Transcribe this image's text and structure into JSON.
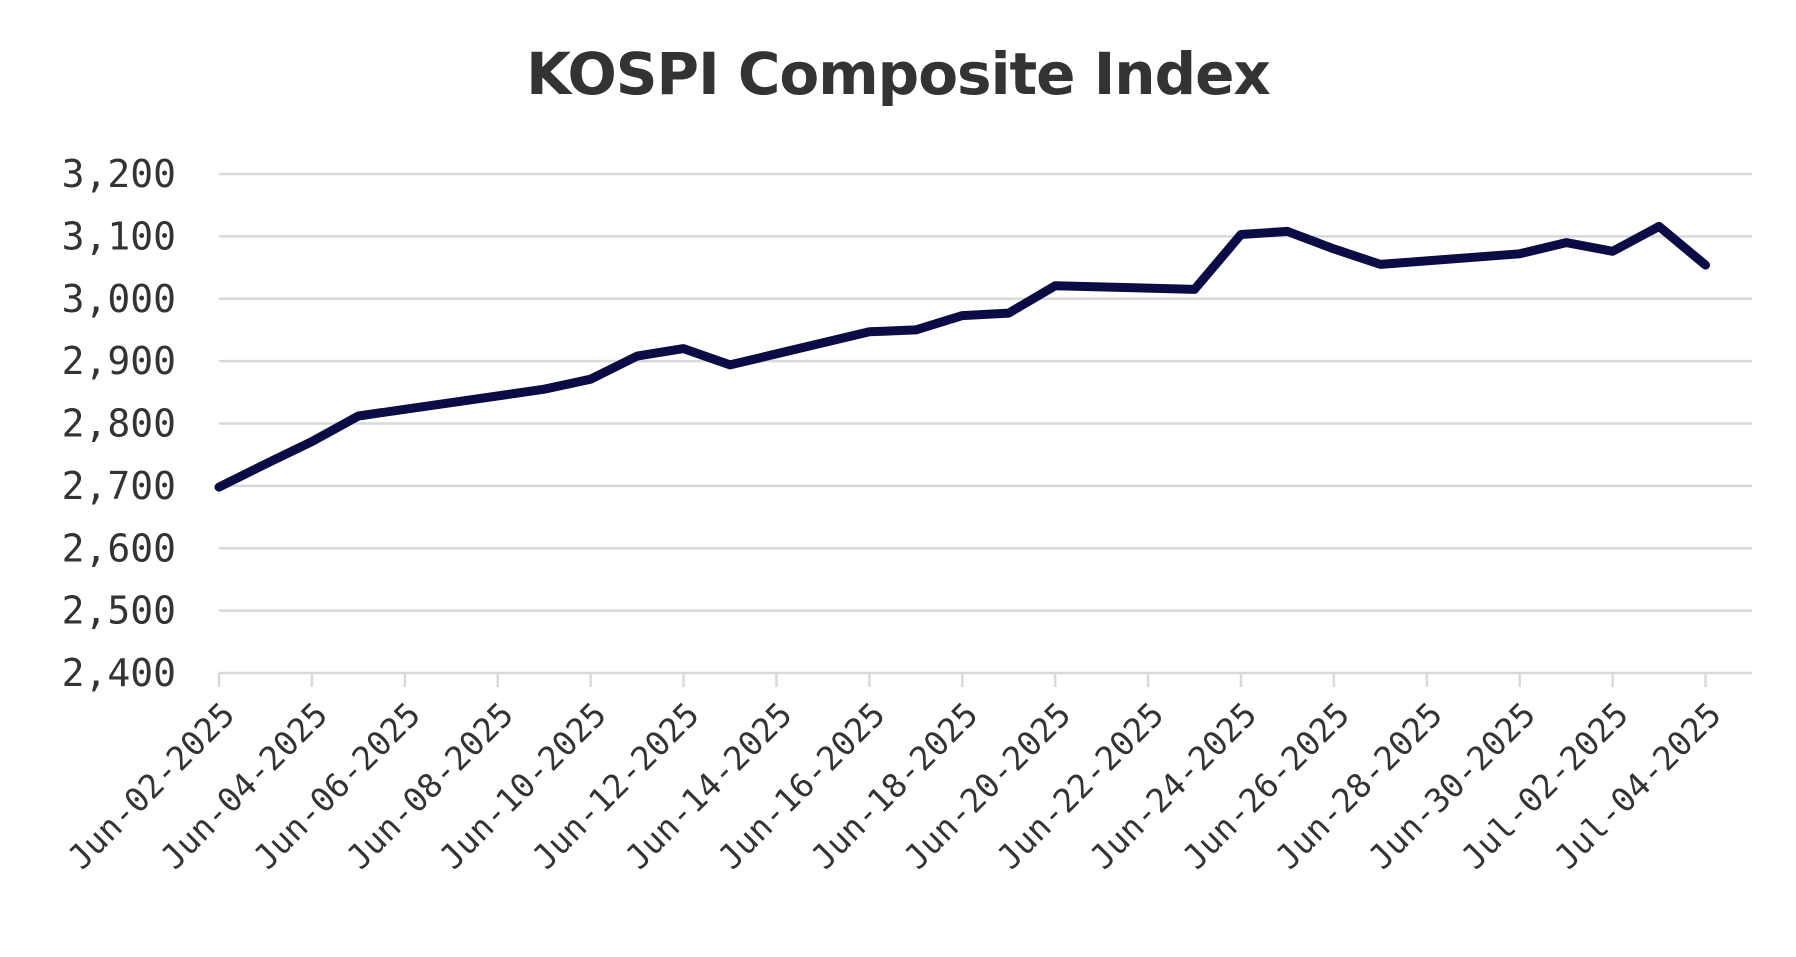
{
  "chart_data": {
    "type": "line",
    "title": "KOSPI Composite Index",
    "xlabel": "",
    "ylabel": "",
    "ylim": [
      2400,
      3200
    ],
    "yticks": [
      2400,
      2500,
      2600,
      2700,
      2800,
      2900,
      3000,
      3100,
      3200
    ],
    "ytick_labels": [
      "2,400",
      "2,500",
      "2,600",
      "2,700",
      "2,800",
      "2,900",
      "3,000",
      "3,100",
      "3,200"
    ],
    "xlim": [
      "2025-06-02",
      "2025-07-05"
    ],
    "xticks": [
      "2025-06-02",
      "2025-06-04",
      "2025-06-06",
      "2025-06-08",
      "2025-06-10",
      "2025-06-12",
      "2025-06-14",
      "2025-06-16",
      "2025-06-18",
      "2025-06-20",
      "2025-06-22",
      "2025-06-24",
      "2025-06-26",
      "2025-06-28",
      "2025-06-30",
      "2025-07-02",
      "2025-07-04"
    ],
    "xtick_labels": [
      "Jun-02-2025",
      "Jun-04-2025",
      "Jun-06-2025",
      "Jun-08-2025",
      "Jun-10-2025",
      "Jun-12-2025",
      "Jun-14-2025",
      "Jun-16-2025",
      "Jun-18-2025",
      "Jun-20-2025",
      "Jun-22-2025",
      "Jun-24-2025",
      "Jun-26-2025",
      "Jun-28-2025",
      "Jun-30-2025",
      "Jul-02-2025",
      "Jul-04-2025"
    ],
    "grid": true,
    "legend": "none",
    "line_color": "#0b0b45",
    "series": [
      {
        "x": [
          "2025-06-02",
          "2025-06-03",
          "2025-06-04",
          "2025-06-05",
          "2025-06-09",
          "2025-06-10",
          "2025-06-11",
          "2025-06-12",
          "2025-06-13",
          "2025-06-16",
          "2025-06-17",
          "2025-06-18",
          "2025-06-19",
          "2025-06-20",
          "2025-06-23",
          "2025-06-24",
          "2025-06-25",
          "2025-06-26",
          "2025-06-27",
          "2025-06-30",
          "2025-07-01",
          "2025-07-02",
          "2025-07-03",
          "2025-07-04"
        ],
        "y": [
          2698,
          2735,
          2771,
          2812,
          2855,
          2871,
          2908,
          2920,
          2894,
          2947,
          2950,
          2973,
          2977,
          3021,
          3015,
          3103,
          3108,
          3080,
          3055,
          3072,
          3090,
          3076,
          3116,
          3054
        ]
      }
    ]
  }
}
